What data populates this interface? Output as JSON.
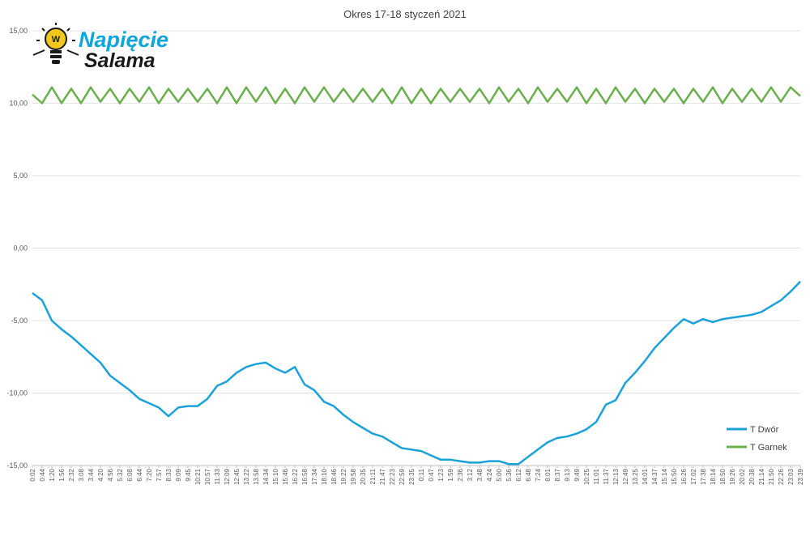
{
  "logo": {
    "line1": "Napięcie",
    "line2": "Salama",
    "badge": "W",
    "line1_color": "#0ea5dd",
    "line2_color": "#1a1a1a",
    "bulb_color": "#f2c81e"
  },
  "chart_data": {
    "type": "line",
    "title": "Okres 17-18 styczeń 2021",
    "xlabel": "",
    "ylabel": "",
    "ylim": [
      -15,
      15
    ],
    "yticks": [
      "15,00",
      "10,00",
      "5,00",
      "0,00",
      "-5,00",
      "-10,00",
      "-15,00"
    ],
    "ytick_values": [
      15,
      10,
      5,
      0,
      -5,
      -10,
      -15
    ],
    "grid": true,
    "legend_position": "bottom-right",
    "x": [
      "0:02",
      "0:44",
      "1:20",
      "1:56",
      "2:32",
      "3:08",
      "3:44",
      "4:20",
      "4:56",
      "5:32",
      "6:08",
      "6:44",
      "7:20",
      "7:57",
      "8:33",
      "9:09",
      "9:45",
      "10:21",
      "10:57",
      "11:33",
      "12:09",
      "12:45",
      "13:22",
      "13:58",
      "14:34",
      "15:10",
      "15:46",
      "16:22",
      "16:58",
      "17:34",
      "18:10",
      "18:46",
      "19:22",
      "19:58",
      "20:35",
      "21:11",
      "21:47",
      "22:23",
      "22:59",
      "23:35",
      "0:11",
      "0:47",
      "1:23",
      "1:59",
      "2:36",
      "3:12",
      "3:48",
      "4:24",
      "5:00",
      "5:36",
      "6:12",
      "6:48",
      "7:24",
      "8:01",
      "8:37",
      "9:13",
      "9:49",
      "10:25",
      "11:01",
      "11:37",
      "12:13",
      "12:49",
      "13:25",
      "14:01",
      "14:37",
      "15:14",
      "15:50",
      "16:26",
      "17:02",
      "17:38",
      "18:14",
      "18:50",
      "19:26",
      "20:02",
      "20:38",
      "21:14",
      "21:50",
      "22:26",
      "23:03",
      "23:39"
    ],
    "series": [
      {
        "name": "T Dwór",
        "color": "#1ba1d9",
        "values": [
          -3.1,
          -3.6,
          -5.0,
          -5.6,
          -6.1,
          -6.7,
          -7.3,
          -7.9,
          -8.8,
          -9.3,
          -9.8,
          -10.4,
          -10.7,
          -11.0,
          -11.6,
          -11.0,
          -10.9,
          -10.9,
          -10.4,
          -9.5,
          -9.2,
          -8.6,
          -8.2,
          -8.0,
          -7.9,
          -8.3,
          -8.6,
          -8.2,
          -9.4,
          -9.8,
          -10.6,
          -10.9,
          -11.5,
          -12.0,
          -12.4,
          -12.8,
          -13.0,
          -13.4,
          -13.8,
          -13.9,
          -14.0,
          -14.3,
          -14.6,
          -14.6,
          -14.7,
          -14.8,
          -14.8,
          -14.7,
          -14.7,
          -14.9,
          -14.9,
          -14.4,
          -13.9,
          -13.4,
          -13.1,
          -13.0,
          -12.8,
          -12.5,
          -12.0,
          -10.8,
          -10.5,
          -9.3,
          -8.6,
          -7.8,
          -6.9,
          -6.2,
          -5.5,
          -4.9,
          -5.2,
          -4.9,
          -5.1,
          -4.9,
          -4.8,
          -4.7,
          -4.6,
          -4.4,
          -4.0,
          -3.6,
          -3.0,
          -2.3
        ]
      },
      {
        "name": "T Garnek",
        "color": "#6ab04c",
        "values": [
          10.6,
          10.0,
          11.1,
          10.0,
          11.0,
          10.0,
          11.1,
          10.1,
          11.0,
          10.0,
          11.0,
          10.1,
          11.1,
          10.0,
          11.0,
          10.1,
          11.0,
          10.1,
          11.0,
          10.0,
          11.1,
          10.0,
          11.1,
          10.1,
          11.1,
          10.0,
          11.0,
          10.0,
          11.1,
          10.1,
          11.1,
          10.1,
          11.0,
          10.1,
          11.0,
          10.1,
          11.0,
          10.0,
          11.1,
          10.0,
          11.0,
          10.0,
          11.0,
          10.1,
          11.0,
          10.1,
          11.0,
          10.0,
          11.1,
          10.1,
          11.0,
          10.0,
          11.1,
          10.1,
          11.0,
          10.1,
          11.1,
          10.0,
          11.0,
          10.0,
          11.1,
          10.1,
          11.0,
          10.0,
          11.0,
          10.1,
          11.0,
          10.0,
          11.0,
          10.1,
          11.1,
          10.0,
          11.0,
          10.1,
          11.0,
          10.1,
          11.1,
          10.1,
          11.1,
          10.5
        ]
      }
    ]
  }
}
